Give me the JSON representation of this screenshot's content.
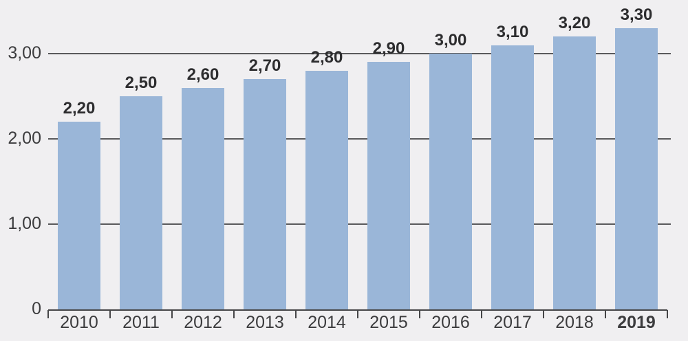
{
  "chart_data": {
    "type": "bar",
    "title": "",
    "xlabel": "",
    "ylabel": "",
    "categories": [
      "2010",
      "2011",
      "2012",
      "2013",
      "2014",
      "2015",
      "2016",
      "2017",
      "2018",
      "2019"
    ],
    "values": [
      2.2,
      2.5,
      2.6,
      2.7,
      2.8,
      2.9,
      3.0,
      3.1,
      3.2,
      3.3
    ],
    "value_labels": [
      "2,20",
      "2,50",
      "2,60",
      "2,70",
      "2,80",
      "2,90",
      "3,00",
      "3,10",
      "3,20",
      "3,30"
    ],
    "y_ticks": [
      {
        "value": 0,
        "label": "0"
      },
      {
        "value": 1,
        "label": "1,00"
      },
      {
        "value": 2,
        "label": "2,00"
      },
      {
        "value": 3,
        "label": "3,00"
      }
    ],
    "ylim": [
      0,
      3.5
    ],
    "grid": true,
    "legend": false,
    "highlighted_category": "2019",
    "colors": {
      "bar": "#9ab6d8",
      "background": "#f0eff1",
      "gridline": "#59595b",
      "axis": "#454547",
      "axis_text": "#3c3c3e",
      "value_text": "#2d2d2f"
    }
  }
}
